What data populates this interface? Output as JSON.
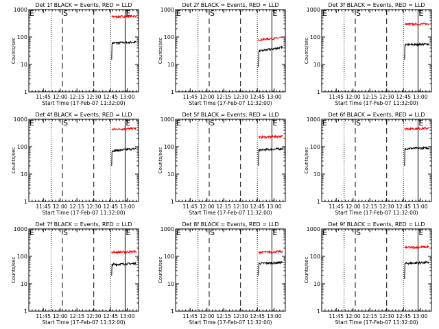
{
  "figure": {
    "xlabel": "Start Time (17-Feb-07 11:32:00)",
    "ylabel": "Counts/sec",
    "xticks": [
      "11:45",
      "12:00",
      "12:15",
      "12:30",
      "12:45",
      "13:00"
    ],
    "yticks": [
      "1",
      "10",
      "100",
      "1000"
    ],
    "colors": {
      "events": "#000000",
      "lld": "#ff0000",
      "axes": "#000000"
    }
  },
  "chart_data": [
    {
      "type": "line",
      "title": "Det 1f BLACK = Events, RED = LLD",
      "xlabel": "Start Time (17-Feb-07 11:32:00)",
      "ylabel": "Counts/sec",
      "xlim_minutes": [
        0,
        98
      ],
      "ylim": [
        1,
        1000
      ],
      "log_y": true,
      "markers": [
        {
          "label": "E",
          "minute": 0,
          "style": "solid"
        },
        {
          "label": "",
          "minute": 20,
          "style": "dotted"
        },
        {
          "label": "S",
          "minute": 30,
          "style": "dashed"
        },
        {
          "label": "",
          "minute": 58,
          "style": "dashed"
        },
        {
          "label": "",
          "minute": 73,
          "style": "dotted"
        },
        {
          "label": "E",
          "minute": 86,
          "style": "solid"
        }
      ],
      "series": [
        {
          "color": "#000000",
          "start_minute": 74,
          "start_value": 15,
          "level": 60,
          "end_value": 65
        },
        {
          "color": "#ff0000",
          "start_minute": 74,
          "start_value": 600,
          "level": 550,
          "end_value": 580
        }
      ]
    },
    {
      "type": "line",
      "title": "Det 2f BLACK = Events, RED = LLD",
      "xlabel": "Start Time (17-Feb-07 11:32:00)",
      "ylabel": "Counts/sec",
      "xlim_minutes": [
        0,
        98
      ],
      "ylim": [
        1,
        1000
      ],
      "log_y": true,
      "markers": [
        {
          "label": "E",
          "minute": 0,
          "style": "solid"
        },
        {
          "label": "",
          "minute": 20,
          "style": "dotted"
        },
        {
          "label": "S",
          "minute": 30,
          "style": "dashed"
        },
        {
          "label": "",
          "minute": 58,
          "style": "dashed"
        },
        {
          "label": "",
          "minute": 73,
          "style": "dotted"
        },
        {
          "label": "E",
          "minute": 86,
          "style": "solid"
        }
      ],
      "series": [
        {
          "color": "#000000",
          "start_minute": 74,
          "start_value": 8,
          "level": 30,
          "end_value": 42
        },
        {
          "color": "#ff0000",
          "start_minute": 74,
          "start_value": 85,
          "level": 78,
          "end_value": 95
        }
      ]
    },
    {
      "type": "line",
      "title": "Det 3f BLACK = Events, RED = LLD",
      "xlabel": "Start Time (17-Feb-07 11:32:00)",
      "ylabel": "Counts/sec",
      "xlim_minutes": [
        0,
        98
      ],
      "ylim": [
        1,
        1000
      ],
      "log_y": true,
      "markers": [
        {
          "label": "E",
          "minute": 0,
          "style": "solid"
        },
        {
          "label": "",
          "minute": 20,
          "style": "dotted"
        },
        {
          "label": "S",
          "minute": 30,
          "style": "dashed"
        },
        {
          "label": "",
          "minute": 58,
          "style": "dashed"
        },
        {
          "label": "",
          "minute": 73,
          "style": "dotted"
        },
        {
          "label": "E",
          "minute": 86,
          "style": "solid"
        }
      ],
      "series": [
        {
          "color": "#000000",
          "start_minute": 74,
          "start_value": 15,
          "level": 52,
          "end_value": 55
        },
        {
          "color": "#ff0000",
          "start_minute": 74,
          "start_value": 300,
          "level": 290,
          "end_value": 300
        }
      ]
    },
    {
      "type": "line",
      "title": "Det 4f BLACK = Events, RED = LLD",
      "xlabel": "Start Time (17-Feb-07 11:32:00)",
      "ylabel": "Counts/sec",
      "xlim_minutes": [
        0,
        98
      ],
      "ylim": [
        1,
        1000
      ],
      "log_y": true,
      "markers": [
        {
          "label": "E",
          "minute": 0,
          "style": "solid"
        },
        {
          "label": "",
          "minute": 20,
          "style": "dotted"
        },
        {
          "label": "S",
          "minute": 30,
          "style": "dashed"
        },
        {
          "label": "",
          "minute": 58,
          "style": "dashed"
        },
        {
          "label": "",
          "minute": 73,
          "style": "dotted"
        },
        {
          "label": "E",
          "minute": 86,
          "style": "solid"
        }
      ],
      "series": [
        {
          "color": "#000000",
          "start_minute": 74,
          "start_value": 20,
          "level": 70,
          "end_value": 85
        },
        {
          "color": "#ff0000",
          "start_minute": 74,
          "start_value": 450,
          "level": 430,
          "end_value": 460
        }
      ]
    },
    {
      "type": "line",
      "title": "Det 5f BLACK = Events, RED = LLD",
      "xlabel": "Start Time (17-Feb-07 11:32:00)",
      "ylabel": "Counts/sec",
      "xlim_minutes": [
        0,
        98
      ],
      "ylim": [
        1,
        1000
      ],
      "log_y": true,
      "markers": [
        {
          "label": "E",
          "minute": 0,
          "style": "solid"
        },
        {
          "label": "",
          "minute": 20,
          "style": "dotted"
        },
        {
          "label": "S",
          "minute": 30,
          "style": "dashed"
        },
        {
          "label": "",
          "minute": 58,
          "style": "dashed"
        },
        {
          "label": "",
          "minute": 73,
          "style": "dotted"
        },
        {
          "label": "E",
          "minute": 86,
          "style": "solid"
        }
      ],
      "series": [
        {
          "color": "#000000",
          "start_minute": 74,
          "start_value": 20,
          "level": 75,
          "end_value": 85
        },
        {
          "color": "#ff0000",
          "start_minute": 74,
          "start_value": 230,
          "level": 220,
          "end_value": 240
        }
      ]
    },
    {
      "type": "line",
      "title": "Det 6f BLACK = Events, RED = LLD",
      "xlabel": "Start Time (17-Feb-07 11:32:00)",
      "ylabel": "Counts/sec",
      "xlim_minutes": [
        0,
        98
      ],
      "ylim": [
        1,
        1000
      ],
      "log_y": true,
      "markers": [
        {
          "label": "E",
          "minute": 0,
          "style": "solid"
        },
        {
          "label": "",
          "minute": 20,
          "style": "dotted"
        },
        {
          "label": "S",
          "minute": 30,
          "style": "dashed"
        },
        {
          "label": "",
          "minute": 58,
          "style": "dashed"
        },
        {
          "label": "",
          "minute": 73,
          "style": "dotted"
        },
        {
          "label": "E",
          "minute": 86,
          "style": "solid"
        }
      ],
      "series": [
        {
          "color": "#000000",
          "start_minute": 74,
          "start_value": 20,
          "level": 85,
          "end_value": 90
        },
        {
          "color": "#ff0000",
          "start_minute": 74,
          "start_value": 480,
          "level": 450,
          "end_value": 470
        }
      ]
    },
    {
      "type": "line",
      "title": "Det 7f BLACK = Events, RED = LLD",
      "xlabel": "Start Time (17-Feb-07 11:32:00)",
      "ylabel": "Counts/sec",
      "xlim_minutes": [
        0,
        98
      ],
      "ylim": [
        1,
        1000
      ],
      "log_y": true,
      "markers": [
        {
          "label": "E",
          "minute": 0,
          "style": "solid"
        },
        {
          "label": "",
          "minute": 20,
          "style": "dotted"
        },
        {
          "label": "S",
          "minute": 30,
          "style": "dashed"
        },
        {
          "label": "",
          "minute": 58,
          "style": "dashed"
        },
        {
          "label": "",
          "minute": 73,
          "style": "dotted"
        },
        {
          "label": "E",
          "minute": 86,
          "style": "solid"
        }
      ],
      "series": [
        {
          "color": "#000000",
          "start_minute": 74,
          "start_value": 20,
          "level": 50,
          "end_value": 55
        },
        {
          "color": "#ff0000",
          "start_minute": 74,
          "start_value": 150,
          "level": 140,
          "end_value": 150
        }
      ]
    },
    {
      "type": "line",
      "title": "Det 8f BLACK = Events, RED = LLD",
      "xlabel": "Start Time (17-Feb-07 11:32:00)",
      "ylabel": "Counts/sec",
      "xlim_minutes": [
        0,
        98
      ],
      "ylim": [
        1,
        1000
      ],
      "log_y": true,
      "markers": [
        {
          "label": "E",
          "minute": 0,
          "style": "solid"
        },
        {
          "label": "",
          "minute": 20,
          "style": "dotted"
        },
        {
          "label": "S",
          "minute": 30,
          "style": "dashed"
        },
        {
          "label": "",
          "minute": 58,
          "style": "dashed"
        },
        {
          "label": "",
          "minute": 73,
          "style": "dotted"
        },
        {
          "label": "E",
          "minute": 86,
          "style": "solid"
        }
      ],
      "series": [
        {
          "color": "#000000",
          "start_minute": 74,
          "start_value": 20,
          "level": 55,
          "end_value": 60
        },
        {
          "color": "#ff0000",
          "start_minute": 74,
          "start_value": 150,
          "level": 140,
          "end_value": 150
        }
      ]
    },
    {
      "type": "line",
      "title": "Det 9f BLACK = Events, RED = LLD",
      "xlabel": "Start Time (17-Feb-07 11:32:00)",
      "ylabel": "Counts/sec",
      "xlim_minutes": [
        0,
        98
      ],
      "ylim": [
        1,
        1000
      ],
      "log_y": true,
      "markers": [
        {
          "label": "E",
          "minute": 0,
          "style": "solid"
        },
        {
          "label": "",
          "minute": 20,
          "style": "dotted"
        },
        {
          "label": "S",
          "minute": 30,
          "style": "dashed"
        },
        {
          "label": "",
          "minute": 58,
          "style": "dashed"
        },
        {
          "label": "",
          "minute": 73,
          "style": "dotted"
        },
        {
          "label": "E",
          "minute": 86,
          "style": "solid"
        }
      ],
      "series": [
        {
          "color": "#000000",
          "start_minute": 74,
          "start_value": 15,
          "level": 55,
          "end_value": 60
        },
        {
          "color": "#ff0000",
          "start_minute": 74,
          "start_value": 220,
          "level": 210,
          "end_value": 220
        }
      ]
    }
  ]
}
